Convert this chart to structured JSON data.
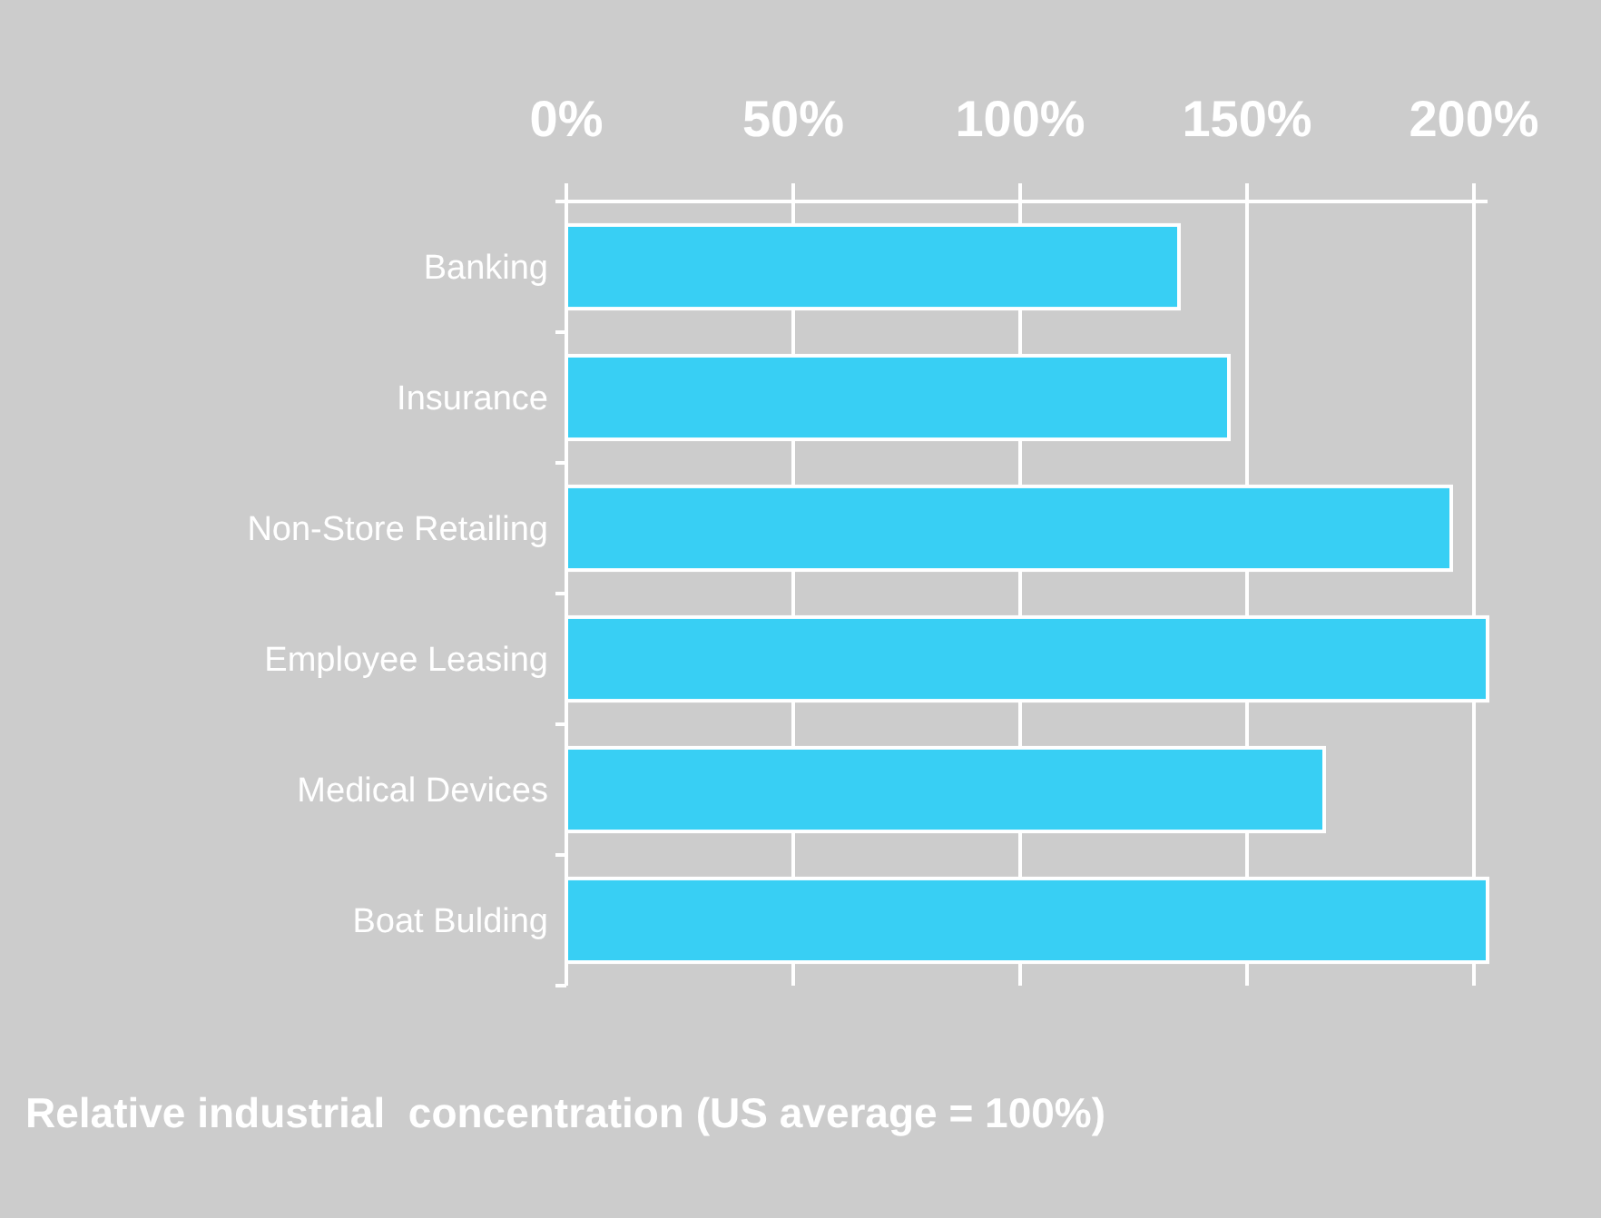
{
  "chart_data": {
    "type": "bar",
    "orientation": "horizontal",
    "title": "Relative industrial  concentration (US average = 100%)",
    "categories": [
      "Banking",
      "Insurance",
      "Non-Store Retailing",
      "Employee Leasing",
      "Medical Devices",
      "Boat Bulding"
    ],
    "values": [
      135,
      146,
      195,
      203,
      167,
      203
    ],
    "color": "#38cff4",
    "xlim": [
      0,
      203
    ],
    "xticks": [
      {
        "value": 0,
        "label": "0%"
      },
      {
        "value": 50,
        "label": "50%"
      },
      {
        "value": 100,
        "label": "100%"
      },
      {
        "value": 150,
        "label": "150%"
      },
      {
        "value": 200,
        "label": "200%"
      }
    ],
    "grid": "x"
  }
}
